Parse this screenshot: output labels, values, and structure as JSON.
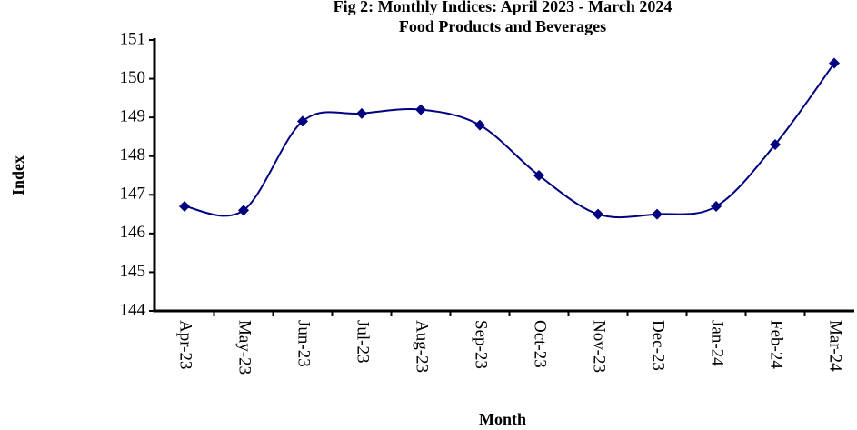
{
  "chart_data": {
    "type": "line",
    "title": "Fig 2: Monthly Indices: April 2023 - March 2024",
    "subtitle": "Food Products and Beverages",
    "x_label": "Month",
    "y_label": "Index",
    "categories": [
      "Apr-23",
      "May-23",
      "Jun-23",
      "Jul-23",
      "Aug-23",
      "Sep-23",
      "Oct-23",
      "Nov-23",
      "Dec-23",
      "Jan-24",
      "Feb-24",
      "Mar-24"
    ],
    "series": [
      {
        "name": "Index",
        "color": "#000080",
        "values": [
          146.7,
          146.6,
          148.9,
          149.1,
          149.2,
          148.8,
          147.5,
          146.5,
          146.5,
          146.7,
          148.3,
          150.4
        ]
      }
    ],
    "ylim": [
      144,
      151
    ],
    "yticks": [
      144,
      145,
      146,
      147,
      148,
      149,
      150,
      151
    ],
    "grid": false
  }
}
